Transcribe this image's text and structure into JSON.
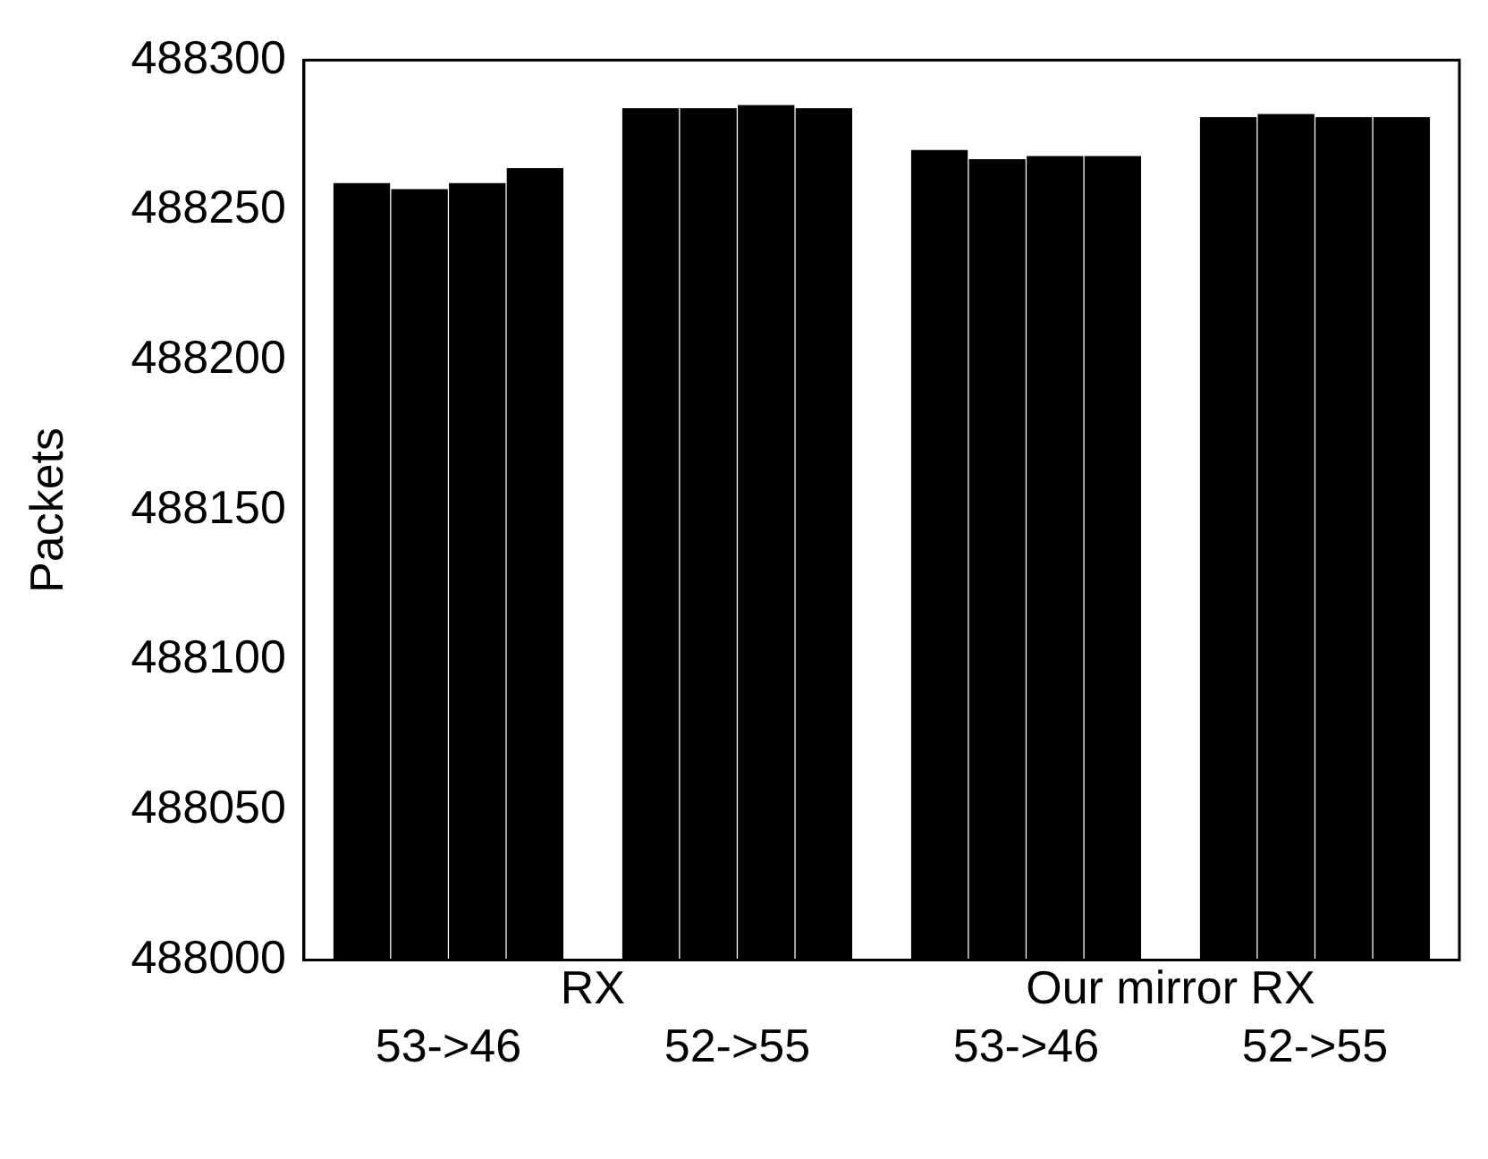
{
  "chart_data": {
    "type": "bar",
    "ylabel": "Packets",
    "categories": [
      "53->46",
      "52->55",
      "53->46",
      "52->55"
    ],
    "series": [
      {
        "color": "#000000",
        "values": [
          488259,
          488284,
          488270,
          488281
        ]
      },
      {
        "color": "#000000",
        "values": [
          488257,
          488284,
          488267,
          488282
        ]
      },
      {
        "color": "#000000",
        "values": [
          488259,
          488285,
          488268,
          488281
        ]
      },
      {
        "color": "#000000",
        "values": [
          488264,
          488284,
          488268,
          488281
        ]
      }
    ],
    "ylim": [
      488000,
      488300
    ],
    "yticks": [
      488000,
      488050,
      488100,
      488150,
      488200,
      488250,
      488300
    ],
    "annotations": [
      "RX",
      "Our mirror RX"
    ],
    "grid": false,
    "legend": false
  }
}
